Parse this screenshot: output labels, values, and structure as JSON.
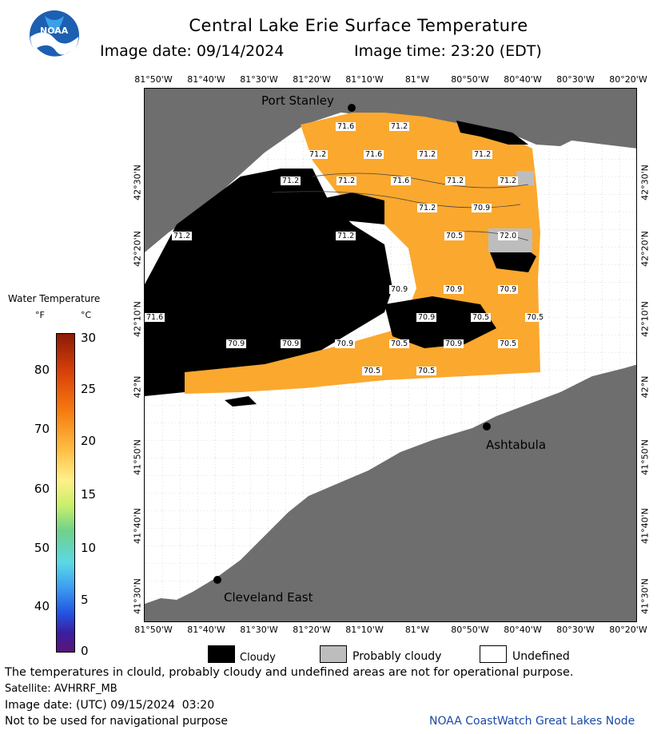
{
  "header": {
    "title": "Central Lake Erie Surface Temperature",
    "image_date": "Image date: 09/14/2024",
    "image_time": "Image time: 23:20 (EDT)"
  },
  "logo": {
    "text": "NOAA"
  },
  "map": {
    "lon_labels": [
      "81°50'W",
      "81°40'W",
      "81°30'W",
      "81°20'W",
      "81°10'W",
      "81°W",
      "80°50'W",
      "80°40'W",
      "80°30'W",
      "80°20'W"
    ],
    "lat_labels": [
      "42°30'N",
      "42°20'N",
      "42°10'N",
      "42°N",
      "41°50'N",
      "41°40'N",
      "41°30'N"
    ],
    "cities": [
      {
        "name": "Port Stanley"
      },
      {
        "name": "Ashtabula"
      },
      {
        "name": "Cleveland East"
      }
    ],
    "temp_labels": [
      "71.6",
      "71.2",
      "71.2",
      "71.6",
      "71.2",
      "71.2",
      "71.2",
      "71.2",
      "71.6",
      "71.2",
      "71.2",
      "71.2",
      "70.9",
      "71.2",
      "71.2",
      "70.5",
      "72.0",
      "70.9",
      "70.9",
      "70.9",
      "71.6",
      "70.9",
      "70.5",
      "70.5",
      "70.9",
      "70.9",
      "70.9",
      "70.5",
      "70.9",
      "70.5",
      "70.5",
      "70.5"
    ]
  },
  "colorbar": {
    "title": "Water Temperature",
    "unit_f": "°F",
    "unit_c": "°C",
    "f_ticks": [
      "80",
      "70",
      "60",
      "50",
      "40"
    ],
    "c_ticks": [
      "30",
      "25",
      "20",
      "15",
      "10",
      "5",
      "0"
    ]
  },
  "legend": {
    "cloudy": "Cloudy",
    "probably_cloudy": "Probably cloudy",
    "undefined": "Undefined"
  },
  "footer": {
    "note": "The temperatures in clould, probably cloudy and undefined areas are not for operational purpose.",
    "satellite": "Satellite: AVHRRF_MB",
    "utc_date": "Image date: (UTC) 09/15/2024  03:20",
    "nav_note": "Not to be used for navigational purpose",
    "credit": "NOAA CoastWatch Great Lakes Node"
  },
  "colors": {
    "land": "#6e6e6e",
    "water_temp": "#fba82e",
    "cloud": "#000000",
    "probably_cloudy": "#bdbdbd",
    "undefined": "#ffffff",
    "credit": "#1a49a8"
  }
}
